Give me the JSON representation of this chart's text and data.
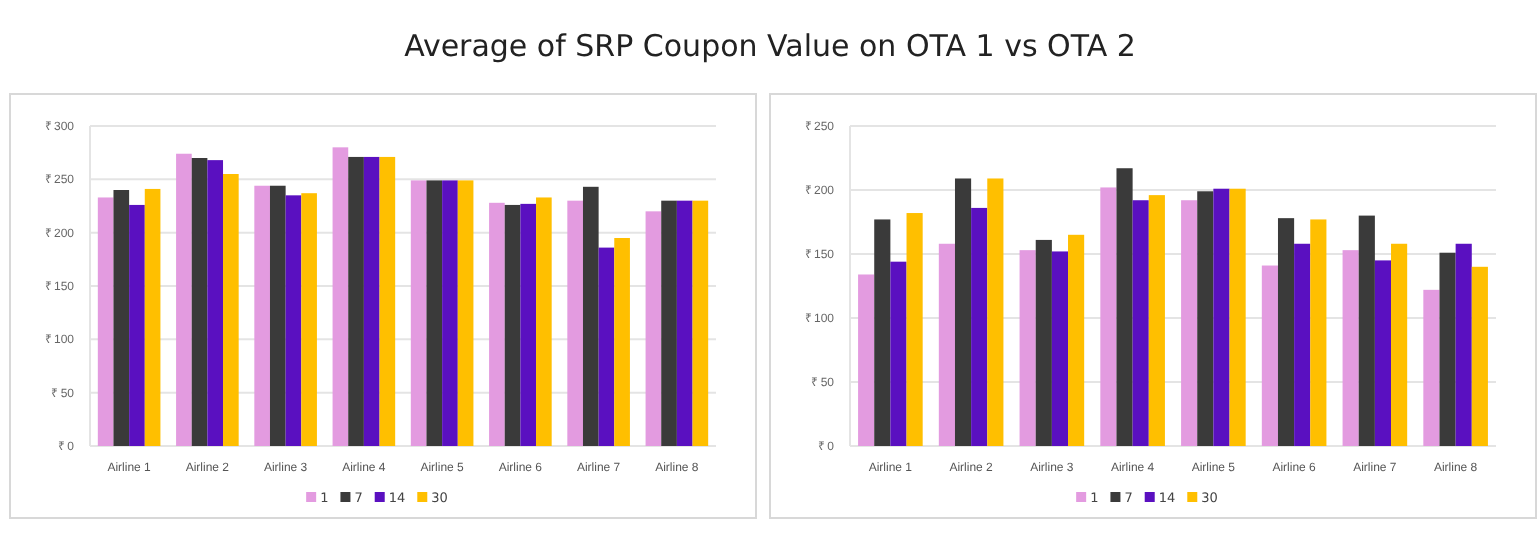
{
  "chart_data": [
    {
      "type": "bar",
      "title": "Average of SRP Coupon Value on OTA 1 vs OTA 2",
      "categories": [
        "Airline 1",
        "Airline 2",
        "Airline 3",
        "Airline 4",
        "Airline 5",
        "Airline 6",
        "Airline 7",
        "Airline 8"
      ],
      "series": [
        {
          "name": "1",
          "color": "#e39be0",
          "values": [
            233,
            274,
            244,
            280,
            249,
            228,
            230,
            220
          ]
        },
        {
          "name": "7",
          "color": "#3a3a3a",
          "values": [
            240,
            270,
            244,
            271,
            249,
            226,
            243,
            230
          ]
        },
        {
          "name": "14",
          "color": "#5a10c0",
          "values": [
            226,
            268,
            235,
            271,
            249,
            227,
            186,
            230
          ]
        },
        {
          "name": "30",
          "color": "#ffbf00",
          "values": [
            241,
            255,
            237,
            271,
            249,
            233,
            195,
            230
          ]
        }
      ],
      "ylim": [
        0,
        300
      ],
      "yticks": [
        {
          "value": 0,
          "label": "₹ 0"
        },
        {
          "value": 50,
          "label": "₹ 50"
        },
        {
          "value": 100,
          "label": "₹ 100"
        },
        {
          "value": 150,
          "label": "₹ 150"
        },
        {
          "value": 200,
          "label": "₹ 200"
        },
        {
          "value": 250,
          "label": "₹ 250"
        },
        {
          "value": 300,
          "label": "₹ 300"
        }
      ],
      "grid": "y",
      "legend": "bottom"
    },
    {
      "type": "bar",
      "categories": [
        "Airline 1",
        "Airline 2",
        "Airline 3",
        "Airline 4",
        "Airline 5",
        "Airline 6",
        "Airline 7",
        "Airline 8"
      ],
      "series": [
        {
          "name": "1",
          "color": "#e39be0",
          "values": [
            134,
            158,
            153,
            202,
            192,
            141,
            153,
            122
          ]
        },
        {
          "name": "7",
          "color": "#3a3a3a",
          "values": [
            177,
            209,
            161,
            217,
            199,
            178,
            180,
            151
          ]
        },
        {
          "name": "14",
          "color": "#5a10c0",
          "values": [
            144,
            186,
            152,
            192,
            201,
            158,
            145,
            158
          ]
        },
        {
          "name": "30",
          "color": "#ffbf00",
          "values": [
            182,
            209,
            165,
            196,
            201,
            177,
            158,
            140
          ]
        }
      ],
      "ylim": [
        0,
        250
      ],
      "yticks": [
        {
          "value": 0,
          "label": "₹ 0"
        },
        {
          "value": 50,
          "label": "₹ 50"
        },
        {
          "value": 100,
          "label": "₹ 100"
        },
        {
          "value": 150,
          "label": "₹ 150"
        },
        {
          "value": 200,
          "label": "₹ 200"
        },
        {
          "value": 250,
          "label": "₹ 250"
        }
      ],
      "grid": "y",
      "legend": "bottom"
    }
  ]
}
